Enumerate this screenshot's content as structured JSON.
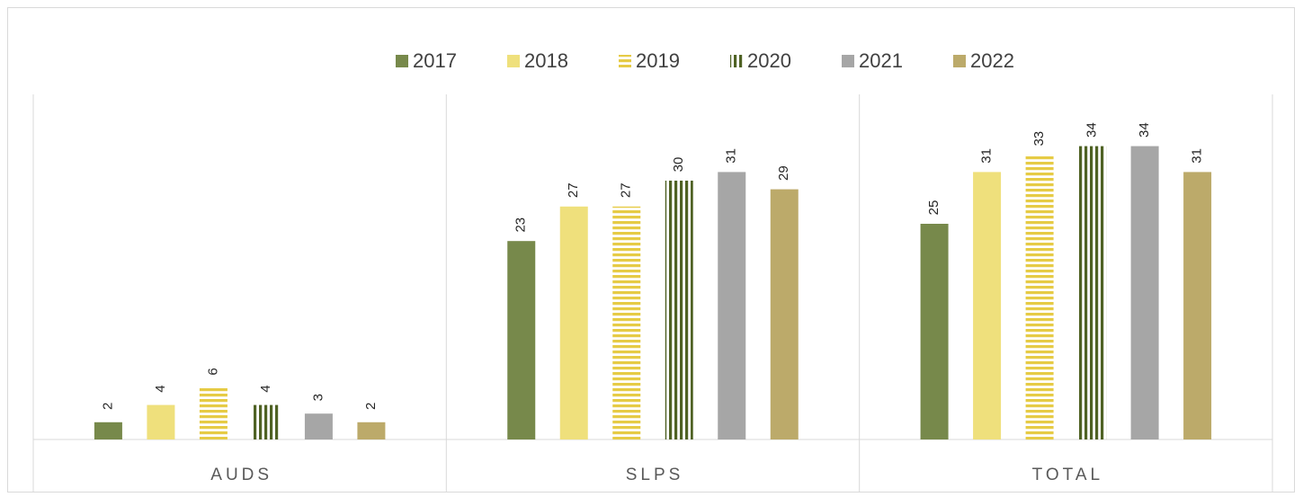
{
  "chart_data": {
    "type": "bar",
    "categories": [
      "AUDS",
      "SLPS",
      "TOTAL"
    ],
    "series": [
      {
        "name": "2017",
        "color": "#77894b",
        "values": [
          2,
          23,
          25
        ]
      },
      {
        "name": "2018",
        "color": "#efe07c",
        "values": [
          4,
          27,
          31
        ]
      },
      {
        "name": "2019",
        "color": "#e6cb45",
        "pattern": "horizontal",
        "values": [
          6,
          27,
          33
        ]
      },
      {
        "name": "2020",
        "color": "#4f6224",
        "pattern": "vertical",
        "values": [
          4,
          30,
          34
        ]
      },
      {
        "name": "2021",
        "color": "#a6a6a6",
        "values": [
          3,
          31,
          34
        ]
      },
      {
        "name": "2022",
        "color": "#bcaa6a",
        "values": [
          2,
          29,
          31
        ]
      }
    ],
    "ylim": [
      0,
      40
    ],
    "legend": "top"
  }
}
